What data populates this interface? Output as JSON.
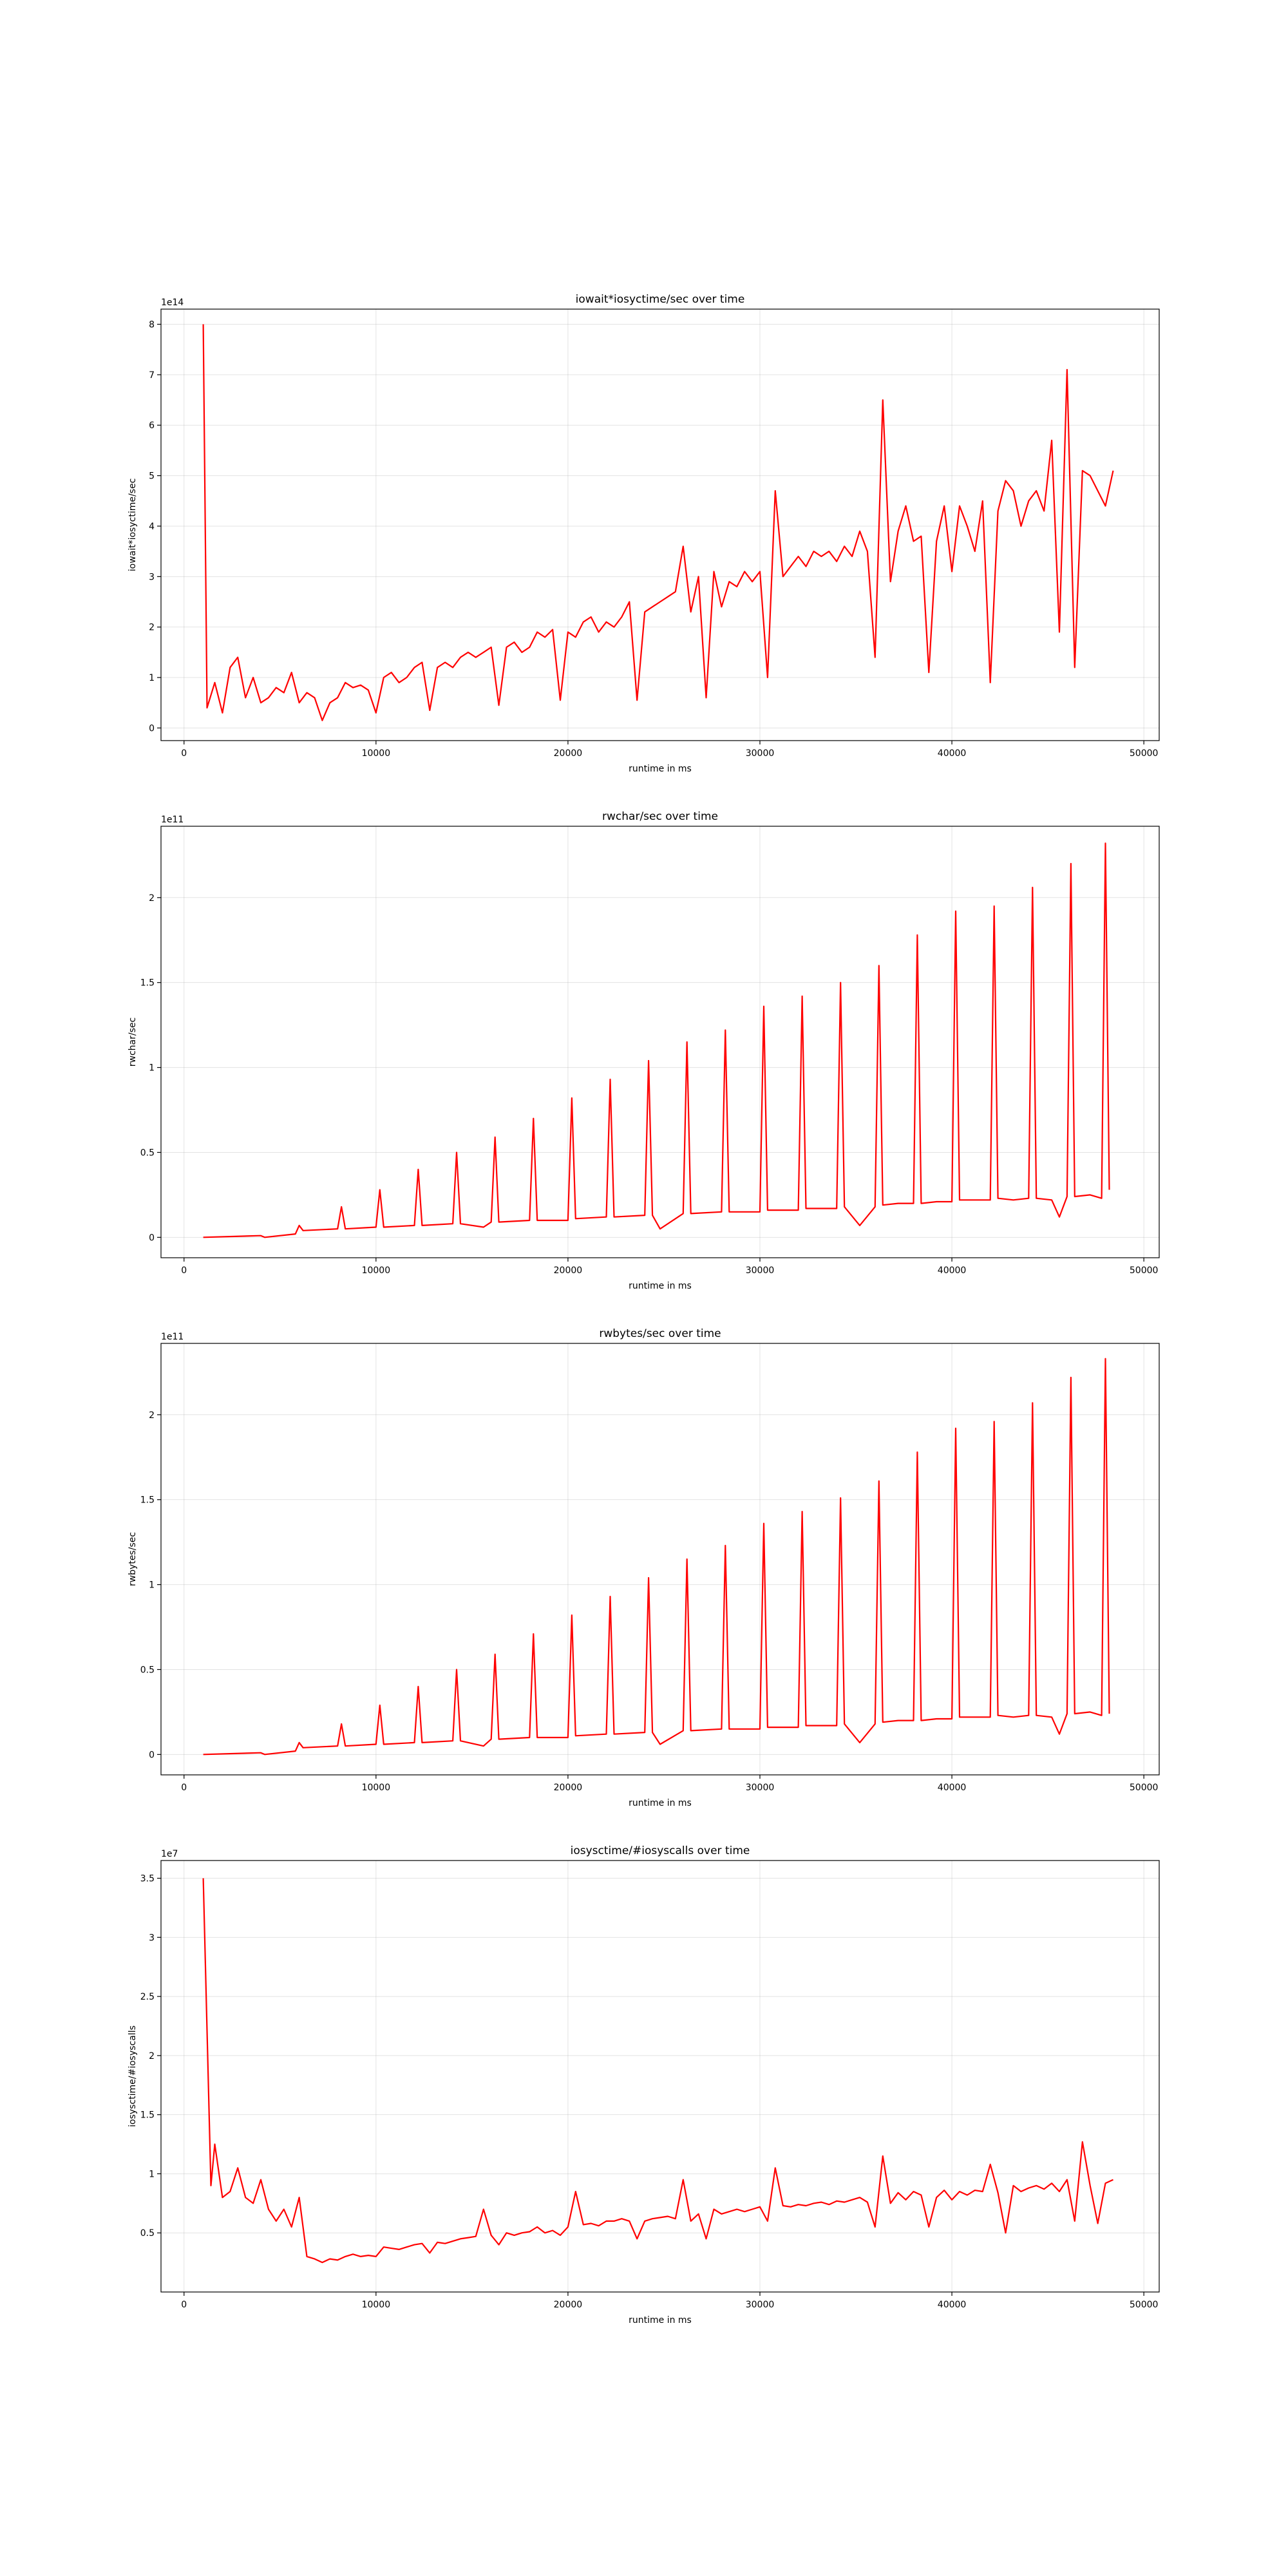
{
  "chart_data": [
    {
      "type": "line",
      "title": "iowait*iosyctime/sec  over time",
      "xlabel": "runtime in ms",
      "ylabel": "iowait*iosyctime/sec",
      "y_offset_label": "1e14",
      "xlim": [
        -1200,
        50800
      ],
      "ylim": [
        -0.25,
        8.3
      ],
      "x_ticks": [
        0,
        10000,
        20000,
        30000,
        40000,
        50000
      ],
      "y_ticks": [
        0,
        1,
        2,
        3,
        4,
        5,
        6,
        7,
        8
      ],
      "grid": true,
      "series": [
        {
          "color": "#ff0000",
          "x": [
            1000,
            1200,
            1600,
            2000,
            2400,
            2800,
            3200,
            3600,
            4000,
            4400,
            4800,
            5200,
            5600,
            6000,
            6400,
            6800,
            7200,
            7600,
            8000,
            8400,
            8800,
            9200,
            9600,
            10000,
            10400,
            10800,
            11200,
            11600,
            12000,
            12400,
            12800,
            13200,
            13600,
            14000,
            14400,
            14800,
            15200,
            15600,
            16000,
            16400,
            16800,
            17200,
            17600,
            18000,
            18400,
            18800,
            19200,
            19600,
            20000,
            20400,
            20800,
            21200,
            21600,
            22000,
            22400,
            22800,
            23200,
            23600,
            24000,
            24400,
            24800,
            25200,
            25600,
            26000,
            26400,
            26800,
            27200,
            27600,
            28000,
            28400,
            28800,
            29200,
            29600,
            30000,
            30400,
            30800,
            31200,
            31600,
            32000,
            32400,
            32800,
            33200,
            33600,
            34000,
            34400,
            34800,
            35200,
            35600,
            36000,
            36400,
            36800,
            37200,
            37600,
            38000,
            38400,
            38800,
            39200,
            39600,
            40000,
            40400,
            40800,
            41200,
            41600,
            42000,
            42400,
            42800,
            43200,
            43600,
            44000,
            44400,
            44800,
            45200,
            45600,
            46000,
            46400,
            46800,
            47200,
            47600,
            48000,
            48400
          ],
          "y": [
            8.0,
            0.4,
            0.9,
            0.3,
            1.2,
            1.4,
            0.6,
            1.0,
            0.5,
            0.6,
            0.8,
            0.7,
            1.1,
            0.5,
            0.7,
            0.6,
            0.15,
            0.5,
            0.6,
            0.9,
            0.8,
            0.85,
            0.75,
            0.3,
            1.0,
            1.1,
            0.9,
            1.0,
            1.2,
            1.3,
            0.35,
            1.2,
            1.3,
            1.2,
            1.4,
            1.5,
            1.4,
            1.5,
            1.6,
            0.45,
            1.6,
            1.7,
            1.5,
            1.6,
            1.9,
            1.8,
            1.95,
            0.55,
            1.9,
            1.8,
            2.1,
            2.2,
            1.9,
            2.1,
            2.0,
            2.2,
            2.5,
            0.55,
            2.3,
            2.4,
            2.5,
            2.6,
            2.7,
            3.6,
            2.3,
            3.0,
            0.6,
            3.1,
            2.4,
            2.9,
            2.8,
            3.1,
            2.9,
            3.1,
            1.0,
            4.7,
            3.0,
            3.2,
            3.4,
            3.2,
            3.5,
            3.4,
            3.5,
            3.3,
            3.6,
            3.4,
            3.9,
            3.5,
            1.4,
            6.5,
            2.9,
            3.9,
            4.4,
            3.7,
            3.8,
            1.1,
            3.7,
            4.4,
            3.1,
            4.4,
            4.0,
            3.5,
            4.5,
            0.9,
            4.3,
            4.9,
            4.7,
            4.0,
            4.5,
            4.7,
            4.3,
            5.7,
            1.9,
            7.1,
            1.2,
            5.1,
            5.0,
            4.7,
            4.4,
            5.1
          ]
        }
      ]
    },
    {
      "type": "line",
      "title": "rwchar/sec  over time",
      "xlabel": "runtime in ms",
      "ylabel": "rwchar/sec",
      "y_offset_label": "1e11",
      "xlim": [
        -1200,
        50800
      ],
      "ylim": [
        -0.12,
        2.42
      ],
      "x_ticks": [
        0,
        10000,
        20000,
        30000,
        40000,
        50000
      ],
      "y_ticks": [
        0.0,
        0.5,
        1.0,
        1.5,
        2.0
      ],
      "grid": true,
      "series": [
        {
          "color": "#ff0000",
          "x": [
            1000,
            4000,
            4200,
            5800,
            6000,
            6200,
            8000,
            8200,
            8400,
            10000,
            10200,
            10400,
            12000,
            12200,
            12400,
            14000,
            14200,
            14400,
            15600,
            16000,
            16200,
            16400,
            18000,
            18200,
            18400,
            20000,
            20200,
            20400,
            22000,
            22200,
            22400,
            24000,
            24200,
            24400,
            24800,
            26000,
            26200,
            26400,
            28000,
            28200,
            28400,
            30000,
            30200,
            30400,
            32000,
            32200,
            32400,
            34000,
            34200,
            34400,
            35200,
            36000,
            36200,
            36400,
            37200,
            38000,
            38200,
            38400,
            39200,
            40000,
            40200,
            40400,
            41200,
            42000,
            42200,
            42400,
            43200,
            44000,
            44200,
            44400,
            45200,
            45600,
            46000,
            46200,
            46400,
            47200,
            47800,
            48000,
            48200
          ],
          "y": [
            0.0,
            0.01,
            0.0,
            0.02,
            0.07,
            0.04,
            0.05,
            0.18,
            0.05,
            0.06,
            0.28,
            0.06,
            0.07,
            0.4,
            0.07,
            0.08,
            0.5,
            0.08,
            0.06,
            0.09,
            0.59,
            0.09,
            0.1,
            0.7,
            0.1,
            0.1,
            0.82,
            0.11,
            0.12,
            0.93,
            0.12,
            0.13,
            1.04,
            0.13,
            0.05,
            0.14,
            1.15,
            0.14,
            0.15,
            1.22,
            0.15,
            0.15,
            1.36,
            0.16,
            0.16,
            1.42,
            0.17,
            0.17,
            1.5,
            0.18,
            0.07,
            0.18,
            1.6,
            0.19,
            0.2,
            0.2,
            1.78,
            0.2,
            0.21,
            0.21,
            1.92,
            0.22,
            0.22,
            0.22,
            1.95,
            0.23,
            0.22,
            0.23,
            2.06,
            0.23,
            0.22,
            0.12,
            0.24,
            2.2,
            0.24,
            0.25,
            0.23,
            2.32,
            0.28
          ]
        }
      ]
    },
    {
      "type": "line",
      "title": "rwbytes/sec  over time",
      "xlabel": "runtime in ms",
      "ylabel": "rwbytes/sec",
      "y_offset_label": "1e11",
      "xlim": [
        -1200,
        50800
      ],
      "ylim": [
        -0.12,
        2.42
      ],
      "x_ticks": [
        0,
        10000,
        20000,
        30000,
        40000,
        50000
      ],
      "y_ticks": [
        0.0,
        0.5,
        1.0,
        1.5,
        2.0
      ],
      "grid": true,
      "series": [
        {
          "color": "#ff0000",
          "x": [
            1000,
            4000,
            4200,
            5800,
            6000,
            6200,
            8000,
            8200,
            8400,
            10000,
            10200,
            10400,
            12000,
            12200,
            12400,
            14000,
            14200,
            14400,
            15600,
            16000,
            16200,
            16400,
            18000,
            18200,
            18400,
            20000,
            20200,
            20400,
            22000,
            22200,
            22400,
            24000,
            24200,
            24400,
            24800,
            26000,
            26200,
            26400,
            28000,
            28200,
            28400,
            30000,
            30200,
            30400,
            32000,
            32200,
            32400,
            34000,
            34200,
            34400,
            35200,
            36000,
            36200,
            36400,
            37200,
            38000,
            38200,
            38400,
            39200,
            40000,
            40200,
            40400,
            41200,
            42000,
            42200,
            42400,
            43200,
            44000,
            44200,
            44400,
            45200,
            45600,
            46000,
            46200,
            46400,
            47200,
            47800,
            48000,
            48200
          ],
          "y": [
            0.0,
            0.01,
            0.0,
            0.02,
            0.07,
            0.04,
            0.05,
            0.18,
            0.05,
            0.06,
            0.29,
            0.06,
            0.07,
            0.4,
            0.07,
            0.08,
            0.5,
            0.08,
            0.05,
            0.09,
            0.59,
            0.09,
            0.1,
            0.71,
            0.1,
            0.1,
            0.82,
            0.11,
            0.12,
            0.93,
            0.12,
            0.13,
            1.04,
            0.13,
            0.06,
            0.14,
            1.15,
            0.14,
            0.15,
            1.23,
            0.15,
            0.15,
            1.36,
            0.16,
            0.16,
            1.43,
            0.17,
            0.17,
            1.51,
            0.18,
            0.07,
            0.18,
            1.61,
            0.19,
            0.2,
            0.2,
            1.78,
            0.2,
            0.21,
            0.21,
            1.92,
            0.22,
            0.22,
            0.22,
            1.96,
            0.23,
            0.22,
            0.23,
            2.07,
            0.23,
            0.22,
            0.12,
            0.24,
            2.22,
            0.24,
            0.25,
            0.23,
            2.33,
            0.24
          ]
        }
      ]
    },
    {
      "type": "line",
      "title": "iosysctime/#iosyscalls  over time",
      "xlabel": "runtime in ms",
      "ylabel": "iosysctime/#iosyscalls",
      "y_offset_label": "1e7",
      "xlim": [
        -1200,
        50800
      ],
      "ylim": [
        0.0,
        3.65
      ],
      "x_ticks": [
        0,
        10000,
        20000,
        30000,
        40000,
        50000
      ],
      "y_ticks": [
        0.5,
        1.0,
        1.5,
        2.0,
        2.5,
        3.0,
        3.5
      ],
      "grid": true,
      "series": [
        {
          "color": "#ff0000",
          "x": [
            1000,
            1400,
            1600,
            2000,
            2400,
            2800,
            3200,
            3600,
            4000,
            4400,
            4800,
            5200,
            5600,
            6000,
            6400,
            6800,
            7200,
            7600,
            8000,
            8400,
            8800,
            9200,
            9600,
            10000,
            10400,
            10800,
            11200,
            11600,
            12000,
            12400,
            12800,
            13200,
            13600,
            14000,
            14400,
            14800,
            15200,
            15600,
            16000,
            16400,
            16800,
            17200,
            17600,
            18000,
            18400,
            18800,
            19200,
            19600,
            20000,
            20400,
            20800,
            21200,
            21600,
            22000,
            22400,
            22800,
            23200,
            23600,
            24000,
            24400,
            24800,
            25200,
            25600,
            26000,
            26400,
            26800,
            27200,
            27600,
            28000,
            28400,
            28800,
            29200,
            29600,
            30000,
            30400,
            30800,
            31200,
            31600,
            32000,
            32400,
            32800,
            33200,
            33600,
            34000,
            34400,
            34800,
            35200,
            35600,
            36000,
            36400,
            36800,
            37200,
            37600,
            38000,
            38400,
            38800,
            39200,
            39600,
            40000,
            40400,
            40800,
            41200,
            41600,
            42000,
            42400,
            42800,
            43200,
            43600,
            44000,
            44400,
            44800,
            45200,
            45600,
            46000,
            46400,
            46800,
            47200,
            47600,
            48000,
            48400
          ],
          "y": [
            3.5,
            0.9,
            1.25,
            0.8,
            0.85,
            1.05,
            0.8,
            0.75,
            0.95,
            0.7,
            0.6,
            0.7,
            0.55,
            0.8,
            0.3,
            0.28,
            0.25,
            0.28,
            0.27,
            0.3,
            0.32,
            0.3,
            0.31,
            0.3,
            0.38,
            0.37,
            0.36,
            0.38,
            0.4,
            0.41,
            0.33,
            0.42,
            0.41,
            0.43,
            0.45,
            0.46,
            0.47,
            0.7,
            0.48,
            0.4,
            0.5,
            0.48,
            0.5,
            0.51,
            0.55,
            0.5,
            0.52,
            0.48,
            0.55,
            0.85,
            0.57,
            0.58,
            0.56,
            0.6,
            0.6,
            0.62,
            0.6,
            0.45,
            0.6,
            0.62,
            0.63,
            0.64,
            0.62,
            0.95,
            0.6,
            0.66,
            0.45,
            0.7,
            0.66,
            0.68,
            0.7,
            0.68,
            0.7,
            0.72,
            0.6,
            1.05,
            0.73,
            0.72,
            0.74,
            0.73,
            0.75,
            0.76,
            0.74,
            0.77,
            0.76,
            0.78,
            0.8,
            0.76,
            0.55,
            1.15,
            0.75,
            0.84,
            0.78,
            0.85,
            0.82,
            0.55,
            0.8,
            0.86,
            0.78,
            0.85,
            0.82,
            0.86,
            0.85,
            1.08,
            0.84,
            0.5,
            0.9,
            0.85,
            0.88,
            0.9,
            0.87,
            0.92,
            0.85,
            0.95,
            0.6,
            1.27,
            0.9,
            0.58,
            0.92,
            0.95
          ]
        }
      ]
    }
  ]
}
